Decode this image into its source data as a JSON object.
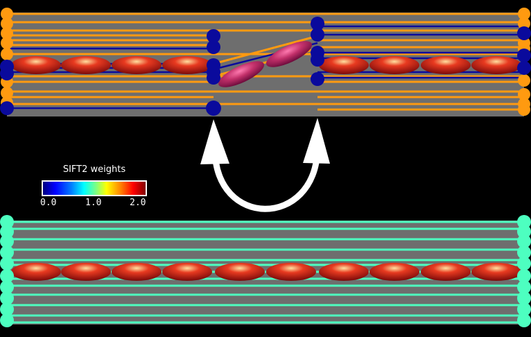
{
  "legend": {
    "title": "SIFT2 weights",
    "ticks": [
      "0.0",
      "1.0",
      "2.0"
    ]
  },
  "colors": {
    "background": "#000000",
    "band_gray": "#6e6e6e",
    "streamline_orange": "#ff9a10",
    "streamline_blue": "#0a0a9c",
    "streamline_green": "#4dffc0",
    "fixel_red": "#d41818",
    "fixel_pink": "#c2306a",
    "arrow": "#ffffff"
  }
}
